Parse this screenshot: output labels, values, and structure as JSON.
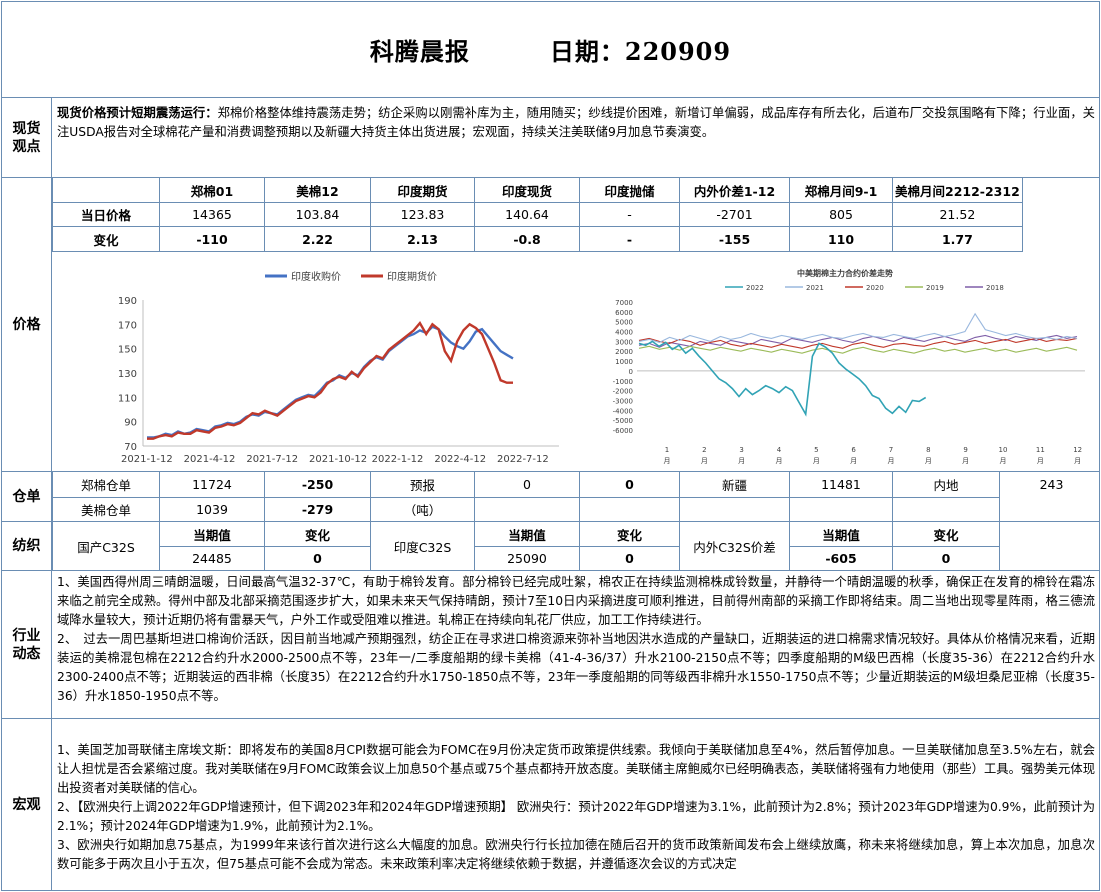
{
  "title": {
    "main": "科腾晨报",
    "date_label": "日期：220909"
  },
  "spot_view": {
    "label": "现货观点",
    "headline": "现货价格预计短期震荡运行：",
    "text": "郑棉价格整体维持震荡走势；纺企采购以刚需补库为主，随用随买；纱线提价困难，新增订单偏弱，成品库存有所去化，后道布厂交投氛围略有下降；行业面，关注USDA报告对全球棉花产量和消费调整预期以及新疆大持货主体出货进展；宏观面，持续关注美联储9月加息节奏演变。"
  },
  "price": {
    "label": "价格",
    "headers": [
      "郑棉01",
      "美棉12",
      "印度期货",
      "印度现货",
      "印度抛储",
      "内外价差1-12",
      "郑棉月间9-1",
      "美棉月间2212-2312"
    ],
    "rows": [
      {
        "name": "当日价格",
        "values": [
          "14365",
          "103.84",
          "123.83",
          "140.64",
          "-",
          "-2701",
          "805",
          "21.52"
        ]
      },
      {
        "name": "变化",
        "values": [
          "-110",
          "2.22",
          "2.13",
          "-0.8",
          "-",
          "-155",
          "110",
          "1.77"
        ]
      }
    ]
  },
  "chart_data": [
    {
      "type": "line",
      "title": "",
      "legend": [
        "印度收购价",
        "印度期货价"
      ],
      "colors": [
        "#4472c4",
        "#c0392b"
      ],
      "x_ticks": [
        "2021-1-12",
        "2021-4-12",
        "2021-7-12",
        "2021-10-12",
        "2022-1-12",
        "2022-4-12",
        "2022-7-12"
      ],
      "ylim": [
        70,
        190
      ],
      "y_ticks": [
        70,
        90,
        110,
        130,
        150,
        170,
        190
      ],
      "series": [
        {
          "name": "印度收购价",
          "values": [
            77,
            77,
            78,
            80,
            79,
            82,
            80,
            81,
            84,
            83,
            82,
            86,
            87,
            89,
            88,
            90,
            94,
            96,
            95,
            98,
            97,
            96,
            100,
            104,
            108,
            110,
            112,
            111,
            116,
            122,
            124,
            128,
            126,
            130,
            128,
            135,
            140,
            143,
            141,
            148,
            152,
            156,
            160,
            162,
            165,
            163,
            168,
            166,
            160,
            155,
            152,
            150,
            156,
            164,
            166,
            160,
            154,
            148,
            145,
            142
          ]
        },
        {
          "name": "印度期货价",
          "values": [
            76,
            76,
            78,
            79,
            78,
            81,
            80,
            80,
            83,
            82,
            81,
            85,
            86,
            88,
            87,
            89,
            93,
            97,
            96,
            99,
            97,
            95,
            99,
            103,
            107,
            109,
            111,
            110,
            114,
            121,
            125,
            127,
            125,
            131,
            127,
            134,
            139,
            144,
            142,
            149,
            153,
            157,
            161,
            165,
            171,
            162,
            170,
            166,
            148,
            140,
            156,
            165,
            170,
            167,
            162,
            150,
            138,
            124,
            122,
            122
          ]
        }
      ]
    },
    {
      "type": "line",
      "title": "中美期棉主力合约价差走势",
      "legend": [
        "2022",
        "2021",
        "2020",
        "2019",
        "2018"
      ],
      "colors": [
        "#31a3b5",
        "#9ab8de",
        "#c0392b",
        "#9bbb59",
        "#7f5fa8"
      ],
      "ylim": [
        -6000,
        7000
      ],
      "y_ticks": [
        7000,
        6000,
        5000,
        4000,
        3000,
        2000,
        1000,
        0,
        -1000,
        -2000,
        -3000,
        -4000,
        -5000,
        -6000
      ],
      "x_ticks": [
        "1月",
        "2月",
        "3月",
        "4月",
        "5月",
        "6月",
        "7月",
        "8月",
        "9月",
        "10月",
        "11月",
        "12月"
      ],
      "series": [
        {
          "name": "2022",
          "values": [
            2800,
            2600,
            3000,
            2500,
            2900,
            2200,
            2600,
            1800,
            2300,
            1500,
            800,
            0,
            -800,
            -1200,
            -1800,
            -2600,
            -1800,
            -2400,
            -2000,
            -1500,
            -1800,
            -2200,
            -1600,
            -2000,
            -3200,
            -4400,
            1500,
            2800,
            2400,
            1800,
            800,
            200,
            -300,
            -800,
            -1500,
            -2500,
            -2800,
            -3800,
            -4300,
            -3600,
            -4200,
            -3000,
            -3100,
            -2701
          ]
        },
        {
          "name": "2021",
          "values": [
            3000,
            3200,
            2900,
            3400,
            3100,
            3600,
            3300,
            3000,
            3500,
            3200,
            3400,
            3800,
            3500,
            3300,
            3600,
            3400,
            3200,
            3500,
            3700,
            3400,
            3300,
            3600,
            3800,
            3500,
            3400,
            3700,
            3500,
            3300,
            3600,
            3800,
            3500,
            3700,
            4000,
            5800,
            4200,
            3900,
            3600,
            3800,
            3500,
            3300,
            3400,
            3200,
            3500,
            3300
          ]
        },
        {
          "name": "2020",
          "values": [
            3100,
            3300,
            3000,
            2800,
            3200,
            3000,
            2600,
            2900,
            3100,
            2700,
            2500,
            2800,
            2600,
            2400,
            2700,
            2500,
            2300,
            2600,
            2800,
            2500,
            2300,
            2700,
            2900,
            2600,
            2400,
            2700,
            2800,
            2600,
            2500,
            2800,
            3000,
            2700,
            2900,
            3100,
            2800,
            3000,
            3200,
            2900,
            3100,
            3300,
            3000,
            3200,
            3100,
            3300
          ]
        },
        {
          "name": "2019",
          "values": [
            2300,
            2500,
            2200,
            2400,
            2100,
            2500,
            2300,
            2100,
            2400,
            2200,
            2000,
            2300,
            2100,
            1900,
            2200,
            2000,
            1800,
            2100,
            2300,
            2000,
            1800,
            2200,
            2400,
            2100,
            1900,
            2200,
            2000,
            1800,
            2100,
            2300,
            2000,
            2200,
            1900,
            2100,
            2300,
            2000,
            2200,
            1900,
            2100,
            2300,
            2000,
            2200,
            2400,
            2100
          ]
        },
        {
          "name": "2018",
          "values": [
            2600,
            2800,
            2400,
            2900,
            2700,
            2500,
            3000,
            2800,
            2600,
            3100,
            2900,
            2700,
            3200,
            3000,
            2800,
            3300,
            3100,
            2900,
            3200,
            3400,
            3100,
            2900,
            3300,
            3500,
            3200,
            3000,
            3400,
            3200,
            3000,
            3300,
            3500,
            3200,
            3000,
            3400,
            3600,
            3300,
            3100,
            3500,
            3300,
            3100,
            3400,
            3600,
            3300,
            3500
          ]
        }
      ]
    }
  ],
  "warehouse": {
    "label": "仓单",
    "row1": {
      "name": "郑棉仓单",
      "value": "11724",
      "change": "-250",
      "forecast_label": "预报",
      "forecast_value": "0",
      "forecast_change": "0",
      "region1_label": "新疆",
      "region1_value": "11481",
      "region2_label": "内地",
      "region2_value": "243"
    },
    "row2": {
      "name": "美棉仓单",
      "value": "1039",
      "change": "-279",
      "unit": "（吨）"
    }
  },
  "spinning": {
    "label": "纺织",
    "cur_label": "当期值",
    "chg_label": "变化",
    "g1_name": "国产C32S",
    "g1_value": "24485",
    "g1_change": "0",
    "g2_name": "印度C32S",
    "g2_value": "25090",
    "g2_change": "0",
    "g3_name": "内外C32S价差",
    "g3_value": "-605",
    "g3_change": "0"
  },
  "industry": {
    "label": "行业动态",
    "p1": "1、美国西得州周三晴朗温暖，日间最高气温32-37℃，有助于棉铃发育。部分棉铃已经完成吐絮，棉农正在持续监测棉株成铃数量，并静待一个晴朗温暖的秋季，确保正在发育的棉铃在霜冻来临之前完全成熟。得州中部及北部采摘范围逐步扩大，如果未来天气保持晴朗，预计7至10日内采摘进度可顺利推进，目前得州南部的采摘工作即将结束。周二当地出现零星阵雨，格三德流域降水量较大，预计近期仍将有雷暴天气，户外工作或受阻难以推进。轧棉正在持续向轧花厂供应，加工工作持续进行。",
    "p2": "2、　过去一周巴基斯坦进口棉询价活跃，因目前当地减产预期强烈，纺企正在寻求进口棉资源来弥补当地因洪水造成的产量缺口，近期装运的进口棉需求情况较好。具体从价格情况来看，近期装运的美棉混包棉在2212合约升水2000-2500点不等，23年一/二季度船期的绿卡美棉（41-4-36/37）升水2100-2150点不等；四季度船期的M级巴西棉（长度35-36）在2212合约升水2300-2400点不等；近期装运的西非棉（长度35）在2212合约升水1750-1850点不等，23年一季度船期的同等级西非棉升水1550-1750点不等；少量近期装运的M级坦桑尼亚棉（长度35-36）升水1850-1950点不等。"
  },
  "macro": {
    "label": "宏观",
    "p1": "1、美国芝加哥联储主席埃文斯：即将发布的美国8月CPI数据可能会为FOMC在9月份决定货币政策提供线索。我倾向于美联储加息至4%，然后暂停加息。一旦美联储加息至3.5%左右，就会让人担忧是否会紧缩过度。我对美联储在9月FOMC政策会议上加息50个基点或75个基点都持开放态度。美联储主席鲍威尔已经明确表态，美联储将强有力地使用（那些）工具。强势美元体现出投资者对美联储的信心。",
    "p2": "2、【欧洲央行上调2022年GDP增速预计，但下调2023年和2024年GDP增速预期】 欧洲央行：预计2022年GDP增速为3.1%，此前预计为2.8%；预计2023年GDP增速为0.9%，此前预计为2.1%；预计2024年GDP增速为1.9%，此前预计为2.1%。",
    "p3": "3、欧洲央行如期加息75基点，为1999年来该行首次进行这么大幅度的加息。欧洲央行行长拉加德在随后召开的货币政策新闻发布会上继续放鹰，称未来将继续加息，算上本次加息，加息次数可能多于两次且小于五次，但75基点可能不会成为常态。未来政策利率决定将继续依赖于数据，并遵循逐次会议的方式决定"
  }
}
